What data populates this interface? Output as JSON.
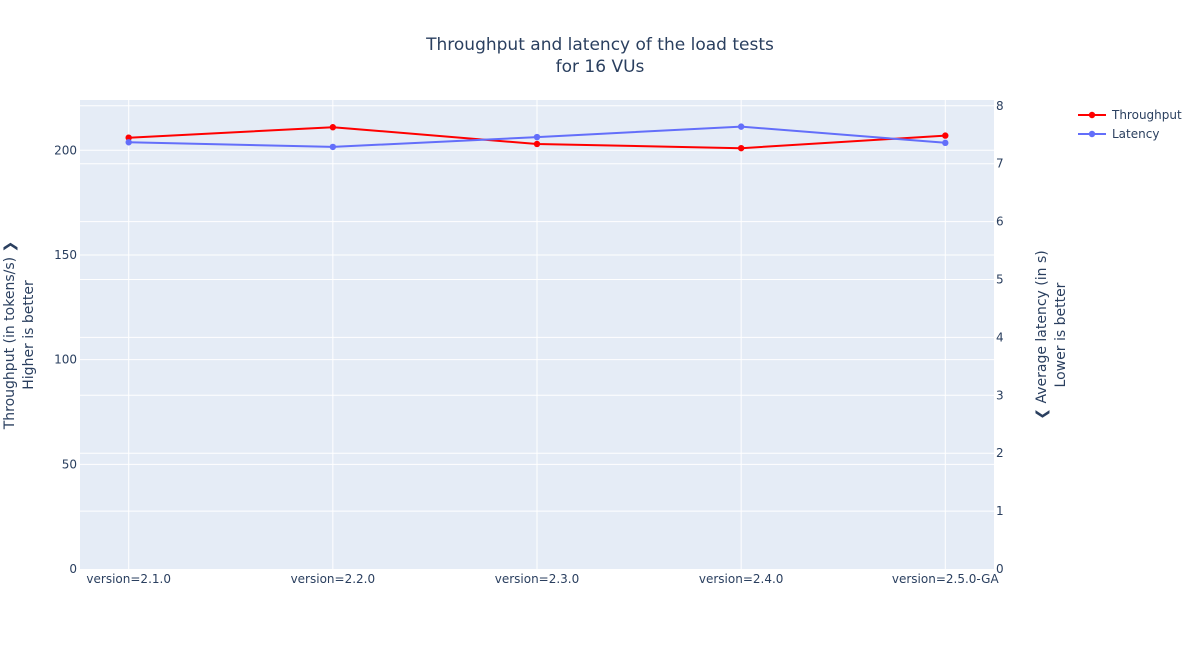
{
  "chart_data": {
    "type": "line",
    "title": "Throughput and latency of the load tests",
    "subtitle": "for 16 VUs",
    "categories": [
      "version=2.1.0",
      "version=2.2.0",
      "version=2.3.0",
      "version=2.4.0",
      "version=2.5.0-GA"
    ],
    "y_left": {
      "label": "Throughput (in tokens/s) ❯",
      "sublabel": "Higher is better",
      "range": [
        0,
        224
      ],
      "ticks": [
        0,
        50,
        100,
        150,
        200
      ]
    },
    "y_right": {
      "label": "❮ Average latency (in s)",
      "sublabel": "Lower is better",
      "range": [
        0,
        8.1
      ],
      "ticks": [
        0,
        1,
        2,
        3,
        4,
        5,
        6,
        7,
        8
      ]
    },
    "series": [
      {
        "name": "Throughput",
        "axis": "left",
        "color": "#ff0000",
        "values": [
          206,
          211,
          203,
          201,
          207
        ]
      },
      {
        "name": "Latency",
        "axis": "right",
        "color": "#636efa",
        "values": [
          7.37,
          7.29,
          7.46,
          7.64,
          7.36
        ]
      }
    ],
    "grid": true,
    "legend_position": "top-right",
    "plot_background": "#e5ecf6"
  }
}
